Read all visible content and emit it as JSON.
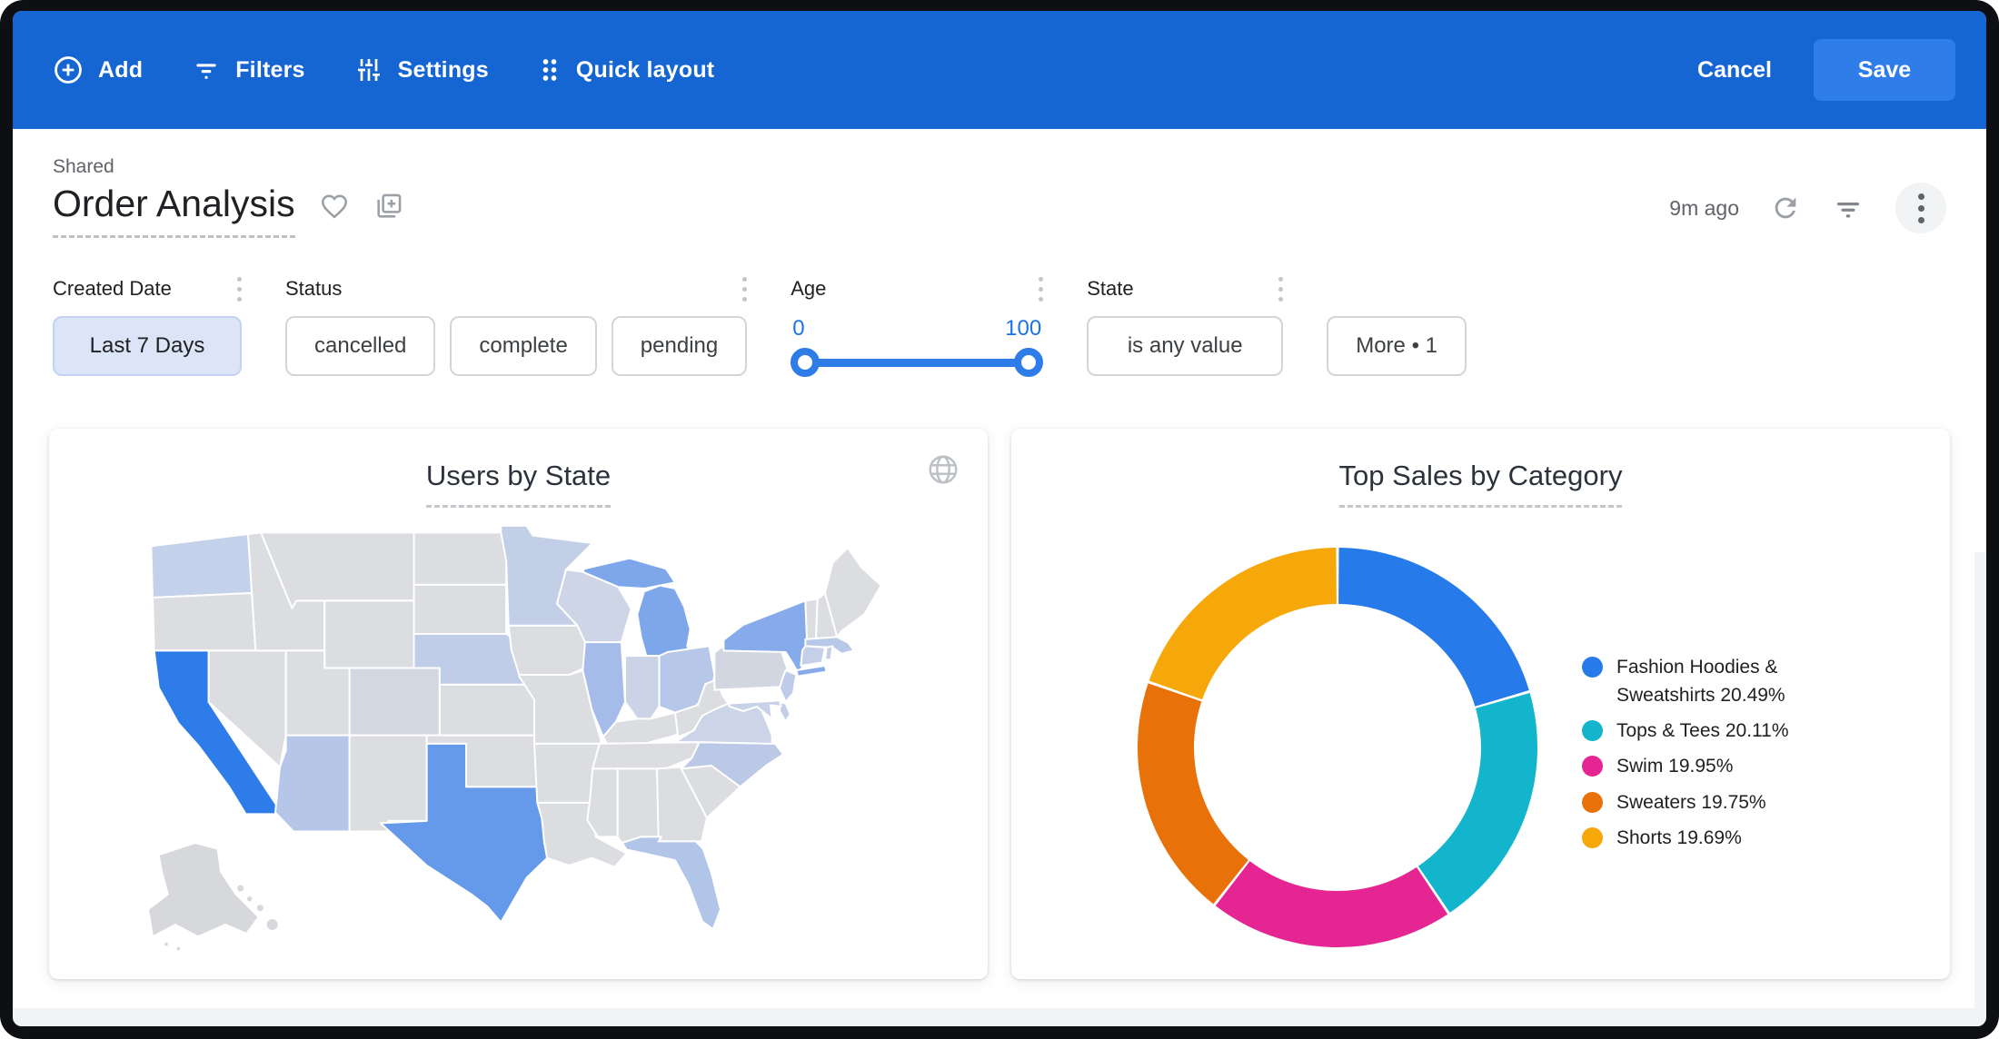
{
  "topbar": {
    "add": "Add",
    "filters": "Filters",
    "settings": "Settings",
    "quick_layout": "Quick layout",
    "cancel": "Cancel",
    "save": "Save"
  },
  "header": {
    "breadcrumb": "Shared",
    "title": "Order Analysis",
    "updated": "9m ago"
  },
  "filters": {
    "created_date": {
      "label": "Created Date",
      "value": "Last 7 Days"
    },
    "status": {
      "label": "Status",
      "values": [
        "cancelled",
        "complete",
        "pending"
      ]
    },
    "age": {
      "label": "Age",
      "min": "0",
      "max": "100"
    },
    "state": {
      "label": "State",
      "value": "is any value"
    },
    "more": {
      "label": "More • 1"
    }
  },
  "chart_data": [
    {
      "type": "heatmap",
      "subtype": "choropleth-us-map",
      "title": "Users by State",
      "legend_position": "none",
      "states_intensity": {
        "CA": "highest",
        "TX": "high",
        "MI": "medium",
        "NY": "medium",
        "IL": "medium-low",
        "AZ": "low",
        "FL": "low",
        "OH": "low",
        "NE": "low",
        "MA": "low",
        "NC": "low",
        "WA": "low",
        "MN": "low",
        "NJ": "low",
        "MD": "low",
        "DE": "low",
        "CT": "low",
        "RI": "low",
        "WI": "very-low",
        "VA": "very-low",
        "IN": "very-low",
        "PA": "very-low",
        "CO": "very-low",
        "others": "none"
      }
    },
    {
      "type": "pie",
      "subtype": "donut",
      "title": "Top Sales by Category",
      "labels": [
        "Fashion Hoodies & Sweatshirts",
        "Tops & Tees",
        "Swim",
        "Sweaters",
        "Shorts"
      ],
      "values": [
        20.49,
        20.11,
        19.95,
        19.75,
        19.69
      ],
      "unit": "%",
      "colors": [
        "#267ae9",
        "#12b5cb",
        "#e52592",
        "#e8710a",
        "#f6a80a"
      ],
      "start_angle_deg": -90,
      "direction": "clockwise",
      "legend_position": "right"
    }
  ],
  "map": {
    "default_fill": "#dbdde1",
    "stroke": "#ffffff",
    "state_fills": {
      "CA": "#2d7ce9",
      "TX": "#649ae9",
      "MI": "#7ea6ea",
      "NY": "#87abea",
      "LI": "#87abea",
      "IL": "#a5bbe9",
      "AZ": "#b5c6e9",
      "FL": "#b1c5e9",
      "OH": "#b7c7e9",
      "NE": "#c0cde9",
      "WA": "#c4d1ea",
      "MN": "#c3cfe7",
      "NC": "#bbc9e7",
      "WI": "#cdd5e7",
      "VA": "#ccd4e7",
      "IN": "#cbd3e6",
      "MA": "#b7c8e9",
      "CT": "#c5d0e8",
      "NJ": "#bfcce9",
      "MD": "#c7d2e8",
      "DE": "#c3cfe8",
      "RI": "#c5d0e8",
      "PA": "#d1d6e1",
      "CO": "#d2d7e2",
      "AK": "#d6d8db",
      "HI": "#d6d8db"
    }
  },
  "colors": {
    "topbar": "#1565d3",
    "save_button": "#2e7de9",
    "accent": "#1a73e8",
    "active_chip_bg": "#dbe5f7"
  }
}
